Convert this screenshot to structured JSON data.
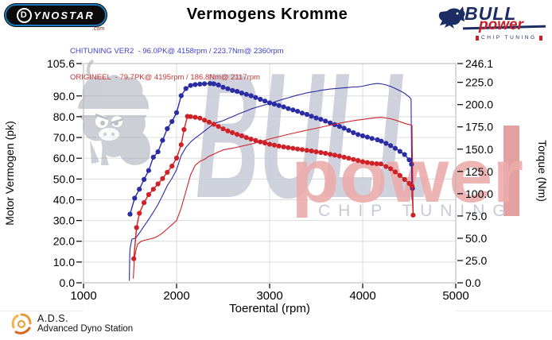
{
  "header": {
    "title": "Vermogens Kromme",
    "dynostar_logo": {
      "d": "D",
      "rest": "YNOSTAR",
      "suffix": ".com"
    },
    "bull_logo": {
      "bull": "BULL",
      "power": "power",
      "tagline": "CHIP TUNING"
    }
  },
  "legend": [
    {
      "label": "CHITUNING VER2  - 96.0PK@ 4158rpm / 223.7Nm@ 2360rpm",
      "color": "#3f3fd0"
    },
    {
      "label": "ORIGINEEL  - 79.7PK@ 4195rpm / 186.8Nm@ 2117rpm",
      "color": "#cc3434"
    }
  ],
  "watermark": {
    "bull_text": "BULL",
    "power_text": "power",
    "tagline": "CHIP TUNING",
    "grey": "#c7cbd7",
    "pink": "#ecacac",
    "bar_pink": "#df8f8f",
    "bull_grey": "#9ba1ae"
  },
  "footer": {
    "xlabel": "Toerental (rpm)",
    "ads_abbr": "A.D.S.",
    "ads_full": "Advanced Dyno Station"
  },
  "chart_data": {
    "type": "line",
    "title": "Vermogens Kromme",
    "xlabel": "Toerental (rpm)",
    "ylabel_left": "Motor Vermogen (pk)",
    "ylabel_right": "Torque (Nm)",
    "x_range": [
      1000,
      5000
    ],
    "y_left_range": [
      0,
      105.6
    ],
    "y_right_range": [
      0,
      246.1
    ],
    "grid": {
      "on": true,
      "h_lines_pk": [
        10,
        20,
        30,
        40,
        50,
        60,
        70,
        80,
        90
      ],
      "v_lines_rpm": [
        2000,
        3000,
        4000
      ],
      "grid_color": "#dcdcdc",
      "border_color": "#b5b5b5"
    },
    "x_ticks": [
      {
        "v": 1000,
        "label": "1000"
      },
      {
        "v": 2000,
        "label": "2000"
      },
      {
        "v": 3000,
        "label": "3000"
      },
      {
        "v": 4000,
        "label": "4000"
      },
      {
        "v": 5000,
        "label": "5000"
      }
    ],
    "y_left_ticks": [
      {
        "v": 105.6,
        "label": "105.6"
      },
      {
        "v": 90,
        "label": "90.0"
      },
      {
        "v": 80,
        "label": "80.0"
      },
      {
        "v": 70,
        "label": "70.0"
      },
      {
        "v": 60,
        "label": "60.0"
      },
      {
        "v": 50,
        "label": "50.0"
      },
      {
        "v": 40,
        "label": "40.0"
      },
      {
        "v": 30,
        "label": "30.0"
      },
      {
        "v": 20,
        "label": "20.0"
      },
      {
        "v": 10,
        "label": "10.0"
      },
      {
        "v": 0,
        "label": "0.0"
      }
    ],
    "y_right_ticks": [
      {
        "v": 246.1,
        "label": "246.1"
      },
      {
        "v": 225,
        "label": "225.0"
      },
      {
        "v": 200,
        "label": "200.0"
      },
      {
        "v": 175,
        "label": "175.0"
      },
      {
        "v": 150,
        "label": "150.0"
      },
      {
        "v": 125,
        "label": "125.0"
      },
      {
        "v": 100,
        "label": "100.0"
      },
      {
        "v": 75,
        "label": "75.0"
      },
      {
        "v": 50,
        "label": "50.0"
      },
      {
        "v": 25,
        "label": "25.0"
      },
      {
        "v": 0,
        "label": "0.0"
      }
    ],
    "series": [
      {
        "name": "chiptuning_torque_nm",
        "axis": "right",
        "color": "#2b2ba3",
        "markers": true,
        "points": [
          [
            1500,
            77
          ],
          [
            1550,
            95
          ],
          [
            1600,
            105
          ],
          [
            1650,
            116
          ],
          [
            1700,
            126
          ],
          [
            1750,
            141
          ],
          [
            1800,
            147
          ],
          [
            1850,
            160
          ],
          [
            1900,
            173
          ],
          [
            1950,
            181
          ],
          [
            2000,
            191
          ],
          [
            2050,
            210
          ],
          [
            2100,
            218
          ],
          [
            2150,
            221.5
          ],
          [
            2200,
            222.5
          ],
          [
            2250,
            223
          ],
          [
            2300,
            223.4
          ],
          [
            2360,
            223.7
          ],
          [
            2400,
            223.4
          ],
          [
            2450,
            222
          ],
          [
            2500,
            219.5
          ],
          [
            2550,
            217.8
          ],
          [
            2600,
            216
          ],
          [
            2650,
            214.8
          ],
          [
            2700,
            213
          ],
          [
            2750,
            211.5
          ],
          [
            2800,
            210
          ],
          [
            2850,
            208
          ],
          [
            2900,
            206
          ],
          [
            2950,
            204
          ],
          [
            3000,
            202
          ],
          [
            3050,
            200.5
          ],
          [
            3100,
            199
          ],
          [
            3150,
            197.5
          ],
          [
            3200,
            195.5
          ],
          [
            3250,
            194
          ],
          [
            3300,
            192.5
          ],
          [
            3350,
            190.5
          ],
          [
            3400,
            189
          ],
          [
            3450,
            187
          ],
          [
            3500,
            185
          ],
          [
            3550,
            183.5
          ],
          [
            3600,
            181.5
          ],
          [
            3650,
            179.5
          ],
          [
            3700,
            177.5
          ],
          [
            3750,
            175.5
          ],
          [
            3800,
            173.5
          ],
          [
            3850,
            171
          ],
          [
            3900,
            168.5
          ],
          [
            3950,
            166.5
          ],
          [
            4000,
            165
          ],
          [
            4050,
            163.5
          ],
          [
            4100,
            162
          ],
          [
            4158,
            160.5
          ],
          [
            4200,
            159
          ],
          [
            4250,
            156.5
          ],
          [
            4300,
            154
          ],
          [
            4350,
            151
          ],
          [
            4400,
            147.5
          ],
          [
            4450,
            144
          ],
          [
            4500,
            138
          ],
          [
            4525,
            133
          ],
          [
            4535,
            106
          ]
        ]
      },
      {
        "name": "chiptuning_power_pk",
        "axis": "left",
        "color": "#2b2ba3",
        "markers": false,
        "points": [
          [
            1492,
            1
          ],
          [
            1497,
            13
          ],
          [
            1500,
            16.5
          ],
          [
            1520,
            21
          ],
          [
            1560,
            21.5
          ],
          [
            1600,
            23.9
          ],
          [
            1650,
            27.3
          ],
          [
            1700,
            30.5
          ],
          [
            1750,
            34
          ],
          [
            1800,
            37.7
          ],
          [
            1850,
            42.1
          ],
          [
            1900,
            46.8
          ],
          [
            1950,
            50.3
          ],
          [
            2000,
            54.5
          ],
          [
            2050,
            61.3
          ],
          [
            2100,
            65.2
          ],
          [
            2150,
            67.8
          ],
          [
            2200,
            69.7
          ],
          [
            2250,
            71.4
          ],
          [
            2300,
            73.1
          ],
          [
            2360,
            75.2
          ],
          [
            2400,
            76.6
          ],
          [
            2450,
            77.4
          ],
          [
            2500,
            78.1
          ],
          [
            2550,
            79.1
          ],
          [
            2600,
            80
          ],
          [
            2650,
            81
          ],
          [
            2700,
            81.9
          ],
          [
            2750,
            82.8
          ],
          [
            2800,
            83.7
          ],
          [
            2850,
            84.4
          ],
          [
            2900,
            85.1
          ],
          [
            2950,
            85.7
          ],
          [
            3000,
            86.3
          ],
          [
            3050,
            87.1
          ],
          [
            3100,
            87.8
          ],
          [
            3150,
            88.5
          ],
          [
            3200,
            89.1
          ],
          [
            3250,
            89.8
          ],
          [
            3300,
            90.4
          ],
          [
            3350,
            90.9
          ],
          [
            3400,
            91.5
          ],
          [
            3450,
            91.9
          ],
          [
            3500,
            92.2
          ],
          [
            3550,
            92.7
          ],
          [
            3600,
            93
          ],
          [
            3650,
            93.3
          ],
          [
            3700,
            93.5
          ],
          [
            3750,
            93.7
          ],
          [
            3800,
            93.9
          ],
          [
            3850,
            94.1
          ],
          [
            3900,
            94.3
          ],
          [
            3950,
            94.4
          ],
          [
            4000,
            94.7
          ],
          [
            4050,
            95.2
          ],
          [
            4100,
            95.7
          ],
          [
            4158,
            96
          ],
          [
            4200,
            95.8
          ],
          [
            4250,
            95.3
          ],
          [
            4300,
            94.6
          ],
          [
            4350,
            93.6
          ],
          [
            4400,
            92.5
          ],
          [
            4450,
            91.3
          ],
          [
            4500,
            89.5
          ],
          [
            4520,
            88.5
          ],
          [
            4530,
            40
          ]
        ]
      },
      {
        "name": "origineel_torque_nm",
        "axis": "right",
        "color": "#cf2128",
        "markers": true,
        "points": [
          [
            1540,
            27
          ],
          [
            1570,
            62
          ],
          [
            1600,
            78
          ],
          [
            1650,
            90
          ],
          [
            1700,
            99
          ],
          [
            1750,
            105
          ],
          [
            1800,
            111
          ],
          [
            1850,
            117
          ],
          [
            1900,
            124
          ],
          [
            1950,
            131
          ],
          [
            2000,
            140
          ],
          [
            2050,
            155
          ],
          [
            2080,
            172
          ],
          [
            2117,
            186.8
          ],
          [
            2150,
            186.5
          ],
          [
            2200,
            185.8
          ],
          [
            2250,
            184.8
          ],
          [
            2300,
            182.5
          ],
          [
            2350,
            180.3
          ],
          [
            2400,
            178
          ],
          [
            2450,
            175.5
          ],
          [
            2500,
            172.8
          ],
          [
            2550,
            170.5
          ],
          [
            2600,
            168.5
          ],
          [
            2650,
            166.6
          ],
          [
            2700,
            165
          ],
          [
            2750,
            163
          ],
          [
            2800,
            161.3
          ],
          [
            2850,
            159.8
          ],
          [
            2900,
            158.2
          ],
          [
            2950,
            156.8
          ],
          [
            3000,
            155.5
          ],
          [
            3050,
            154.5
          ],
          [
            3100,
            153.5
          ],
          [
            3150,
            152.6
          ],
          [
            3200,
            151.8
          ],
          [
            3250,
            151
          ],
          [
            3300,
            150.2
          ],
          [
            3350,
            149.5
          ],
          [
            3400,
            148.7
          ],
          [
            3450,
            148
          ],
          [
            3500,
            147
          ],
          [
            3550,
            146.2
          ],
          [
            3600,
            145.3
          ],
          [
            3650,
            144.3
          ],
          [
            3700,
            143.3
          ],
          [
            3750,
            142.2
          ],
          [
            3800,
            141
          ],
          [
            3850,
            139.8
          ],
          [
            3900,
            138.5
          ],
          [
            3950,
            137.2
          ],
          [
            4000,
            136
          ],
          [
            4050,
            135
          ],
          [
            4100,
            134.2
          ],
          [
            4150,
            133.7
          ],
          [
            4195,
            133.4
          ],
          [
            4250,
            130.5
          ],
          [
            4300,
            128
          ],
          [
            4350,
            124.5
          ],
          [
            4400,
            120.5
          ],
          [
            4450,
            116
          ],
          [
            4500,
            111.5
          ],
          [
            4530,
            108.5
          ],
          [
            4542,
            76
          ]
        ]
      },
      {
        "name": "origineel_power_pk",
        "axis": "left",
        "color": "#cf2128",
        "markers": false,
        "points": [
          [
            1535,
            2
          ],
          [
            1545,
            11
          ],
          [
            1560,
            15
          ],
          [
            1580,
            18.5
          ],
          [
            1620,
            20
          ],
          [
            1660,
            20.5
          ],
          [
            1700,
            21
          ],
          [
            1750,
            21.5
          ],
          [
            1800,
            22.5
          ],
          [
            1850,
            24
          ],
          [
            1900,
            26
          ],
          [
            1950,
            28
          ],
          [
            2000,
            30
          ],
          [
            2050,
            36
          ],
          [
            2100,
            44
          ],
          [
            2150,
            52
          ],
          [
            2200,
            56.5
          ],
          [
            2250,
            58.5
          ],
          [
            2300,
            59.5
          ],
          [
            2350,
            61
          ],
          [
            2400,
            62
          ],
          [
            2450,
            63
          ],
          [
            2500,
            64
          ],
          [
            2600,
            64.8
          ],
          [
            2700,
            65.8
          ],
          [
            2800,
            66.8
          ],
          [
            2900,
            68
          ],
          [
            3000,
            69.3
          ],
          [
            3100,
            70.4
          ],
          [
            3200,
            71.5
          ],
          [
            3300,
            72.5
          ],
          [
            3400,
            73.5
          ],
          [
            3500,
            74.4
          ],
          [
            3600,
            75.4
          ],
          [
            3700,
            76.4
          ],
          [
            3800,
            77.3
          ],
          [
            3900,
            78.1
          ],
          [
            4000,
            78.7
          ],
          [
            4100,
            79.3
          ],
          [
            4195,
            79.7
          ],
          [
            4250,
            79.4
          ],
          [
            4300,
            79
          ],
          [
            4350,
            78.4
          ],
          [
            4400,
            77.6
          ],
          [
            4450,
            76.8
          ],
          [
            4500,
            76.2
          ],
          [
            4530,
            75.8
          ],
          [
            4542,
            34
          ]
        ]
      }
    ]
  }
}
